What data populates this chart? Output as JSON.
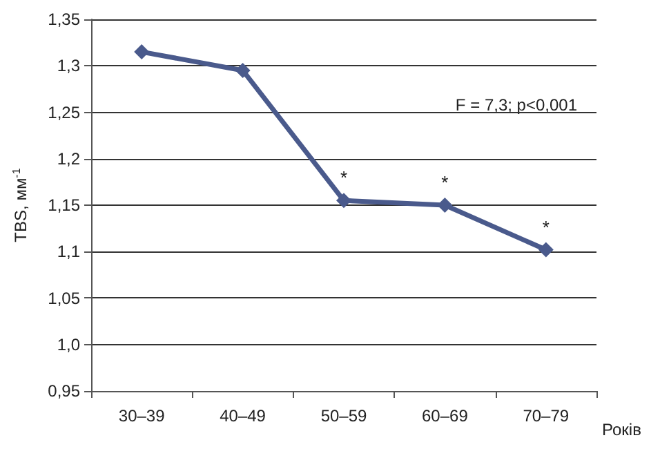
{
  "chart_data": {
    "type": "line",
    "xlabel": "Років",
    "ylabel": "TBS, мм$^{-1}$",
    "categories": [
      "30–39",
      "40–49",
      "50–59",
      "60–69",
      "70–79"
    ],
    "series": [
      {
        "color": "#4a5a8c",
        "values": [
          1.315,
          1.295,
          1.155,
          1.15,
          1.102
        ]
      }
    ],
    "ylim": [
      0.95,
      1.35
    ],
    "yticks": [
      {
        "value": 0.95,
        "label": "0,95"
      },
      {
        "value": 1.0,
        "label": "1,0"
      },
      {
        "value": 1.05,
        "label": "1,05"
      },
      {
        "value": 1.1,
        "label": "1,1"
      },
      {
        "value": 1.15,
        "label": "1,15"
      },
      {
        "value": 1.2,
        "label": "1,2"
      },
      {
        "value": 1.25,
        "label": "1,25"
      },
      {
        "value": 1.3,
        "label": "1,3"
      },
      {
        "value": 1.35,
        "label": "1,35"
      }
    ],
    "grid": "y",
    "marker": "diamond",
    "line_style": "solid",
    "annotations": [
      "F = 7,3; p<0,001",
      {
        "text": "*",
        "x": "50–59",
        "y": 1.155
      },
      {
        "text": "*",
        "x": "60–69",
        "y": 1.15
      },
      {
        "text": "*",
        "x": "70–79",
        "y": 1.102
      }
    ]
  }
}
